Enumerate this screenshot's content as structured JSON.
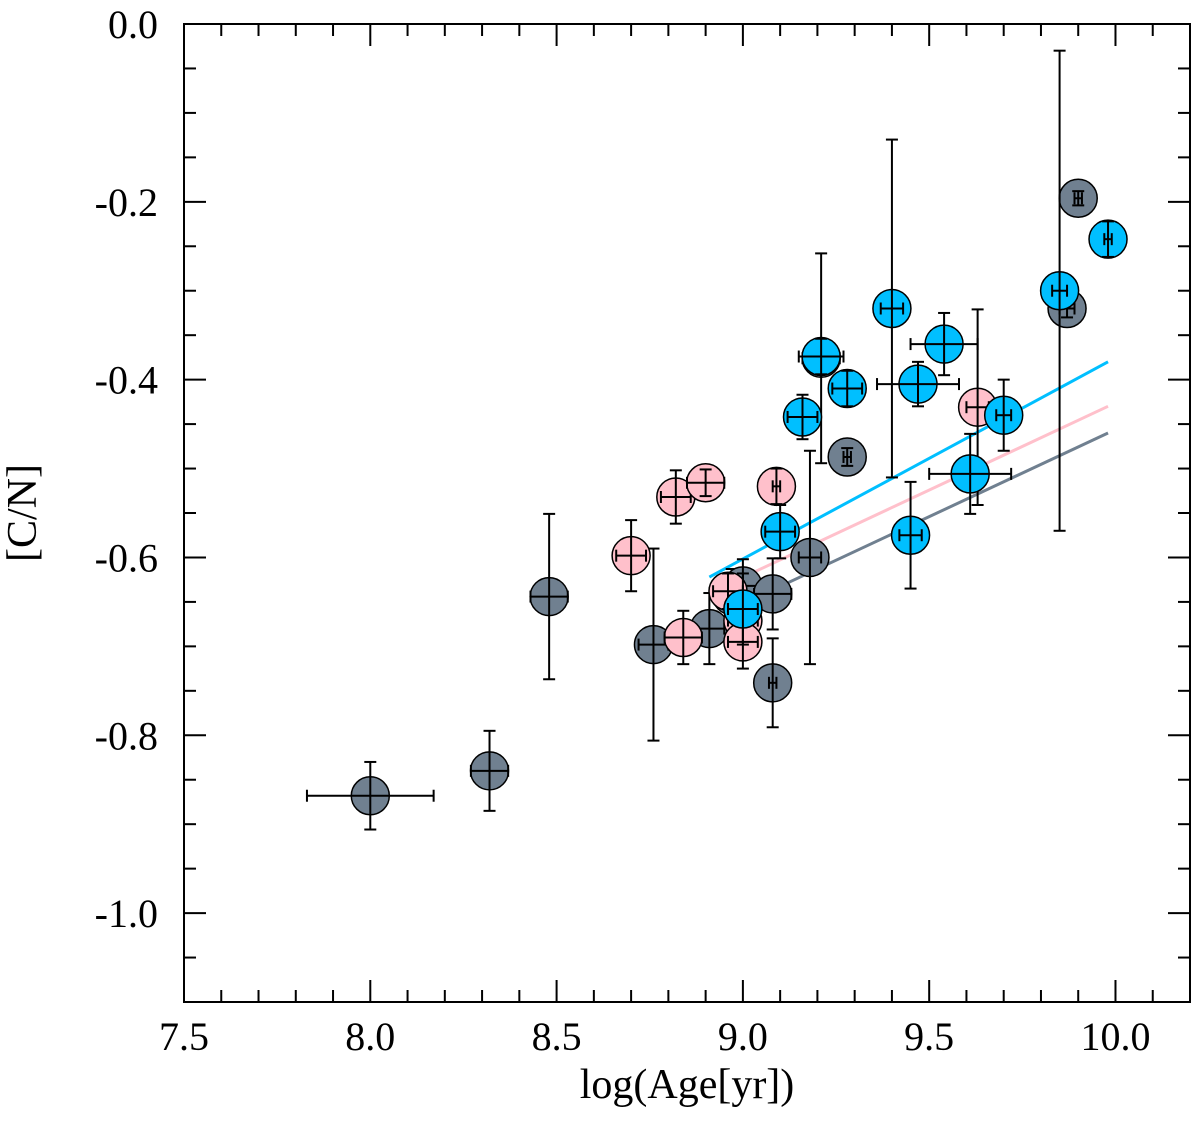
{
  "chart_data": {
    "type": "scatter",
    "title": "",
    "xlabel": "log(Age[yr])",
    "ylabel": "[C/N]",
    "xlim": [
      7.5,
      10.2
    ],
    "ylim": [
      -1.1,
      0.0
    ],
    "xticks": [
      "7.5",
      "8.0",
      "8.5",
      "9.0",
      "9.5",
      "10.0"
    ],
    "yticks": [
      "0.0",
      "-0.2",
      "-0.4",
      "-0.6",
      "-0.8",
      "-1.0"
    ],
    "grid": false,
    "colors": {
      "grey": "#708090",
      "pink": "#ffc0cb",
      "blue": "#00bfff",
      "errorbar": "#000000"
    },
    "series": [
      {
        "name": "grey",
        "color": "#708090",
        "points": [
          {
            "x": 8.0,
            "y": -0.868,
            "xerr": 0.17,
            "yerr": 0.038
          },
          {
            "x": 8.32,
            "y": -0.84,
            "xerr": 0.05,
            "yerr": 0.045
          },
          {
            "x": 8.48,
            "y": -0.644,
            "xerr": 0.05,
            "yerr": 0.093
          },
          {
            "x": 8.76,
            "y": -0.698,
            "xerr": 0.04,
            "yerr": 0.108
          },
          {
            "x": 8.91,
            "y": -0.68,
            "xerr": 0.04,
            "yerr": 0.04
          },
          {
            "x": 8.97,
            "y": -0.643,
            "xerr": 0.04,
            "yerr": 0.03
          },
          {
            "x": 9.0,
            "y": -0.632,
            "xerr": 0.05,
            "yerr": 0.03
          },
          {
            "x": 9.08,
            "y": -0.741,
            "xerr": 0.01,
            "yerr": 0.05
          },
          {
            "x": 9.08,
            "y": -0.641,
            "xerr": 0.05,
            "yerr": 0.04
          },
          {
            "x": 9.18,
            "y": -0.6,
            "xerr": 0.03,
            "yerr": 0.12
          },
          {
            "x": 9.21,
            "y": -0.376,
            "xerr": 0.05,
            "yerr": 0.118
          },
          {
            "x": 9.28,
            "y": -0.487,
            "xerr": 0.01,
            "yerr": 0.01
          },
          {
            "x": 9.87,
            "y": -0.32,
            "xerr": 0.02,
            "yerr": 0.01
          },
          {
            "x": 9.9,
            "y": -0.196,
            "xerr": 0.01,
            "yerr": 0.008
          }
        ]
      },
      {
        "name": "pink",
        "color": "#ffc0cb",
        "points": [
          {
            "x": 8.7,
            "y": -0.598,
            "xerr": 0.04,
            "yerr": 0.04
          },
          {
            "x": 8.82,
            "y": -0.532,
            "xerr": 0.04,
            "yerr": 0.03
          },
          {
            "x": 8.84,
            "y": -0.69,
            "xerr": 0.05,
            "yerr": 0.03
          },
          {
            "x": 8.9,
            "y": -0.516,
            "xerr": 0.05,
            "yerr": 0.015
          },
          {
            "x": 8.96,
            "y": -0.638,
            "xerr": 0.04,
            "yerr": 0.02
          },
          {
            "x": 9.0,
            "y": -0.671,
            "xerr": 0.04,
            "yerr": 0.03
          },
          {
            "x": 9.0,
            "y": -0.695,
            "xerr": 0.04,
            "yerr": 0.03
          },
          {
            "x": 9.09,
            "y": -0.52,
            "xerr": 0.01,
            "yerr": 0.02
          },
          {
            "x": 9.63,
            "y": -0.431,
            "xerr": 0.03,
            "yerr": 0.11
          }
        ]
      },
      {
        "name": "blue",
        "color": "#00bfff",
        "points": [
          {
            "x": 9.0,
            "y": -0.658,
            "xerr": 0.04,
            "yerr": 0.04
          },
          {
            "x": 9.1,
            "y": -0.571,
            "xerr": 0.04,
            "yerr": 0.03
          },
          {
            "x": 9.16,
            "y": -0.442,
            "xerr": 0.04,
            "yerr": 0.025
          },
          {
            "x": 9.21,
            "y": -0.374,
            "xerr": 0.06,
            "yerr": 0.02
          },
          {
            "x": 9.28,
            "y": -0.41,
            "xerr": 0.04,
            "yerr": 0.02
          },
          {
            "x": 9.4,
            "y": -0.32,
            "xerr": 0.03,
            "yerr": 0.19
          },
          {
            "x": 9.45,
            "y": -0.575,
            "xerr": 0.03,
            "yerr": 0.06
          },
          {
            "x": 9.47,
            "y": -0.405,
            "xerr": 0.11,
            "yerr": 0.025
          },
          {
            "x": 9.54,
            "y": -0.36,
            "xerr": 0.09,
            "yerr": 0.035
          },
          {
            "x": 9.61,
            "y": -0.506,
            "xerr": 0.11,
            "yerr": 0.045
          },
          {
            "x": 9.7,
            "y": -0.44,
            "xerr": 0.02,
            "yerr": 0.04
          },
          {
            "x": 9.85,
            "y": -0.3,
            "xerr": 0.02,
            "yerr": 0.27
          },
          {
            "x": 9.98,
            "y": -0.242,
            "xerr": 0.01,
            "yerr": 0.02
          }
        ]
      }
    ],
    "lines": [
      {
        "name": "blue-trend",
        "color": "#00bfff",
        "x": [
          8.91,
          9.98
        ],
        "y": [
          -0.622,
          -0.38
        ]
      },
      {
        "name": "pink-trend",
        "color": "#ffc0cb",
        "x": [
          8.91,
          9.98
        ],
        "y": [
          -0.64,
          -0.43
        ]
      },
      {
        "name": "grey-trend",
        "color": "#708090",
        "x": [
          8.96,
          9.98
        ],
        "y": [
          -0.66,
          -0.46
        ]
      }
    ]
  }
}
